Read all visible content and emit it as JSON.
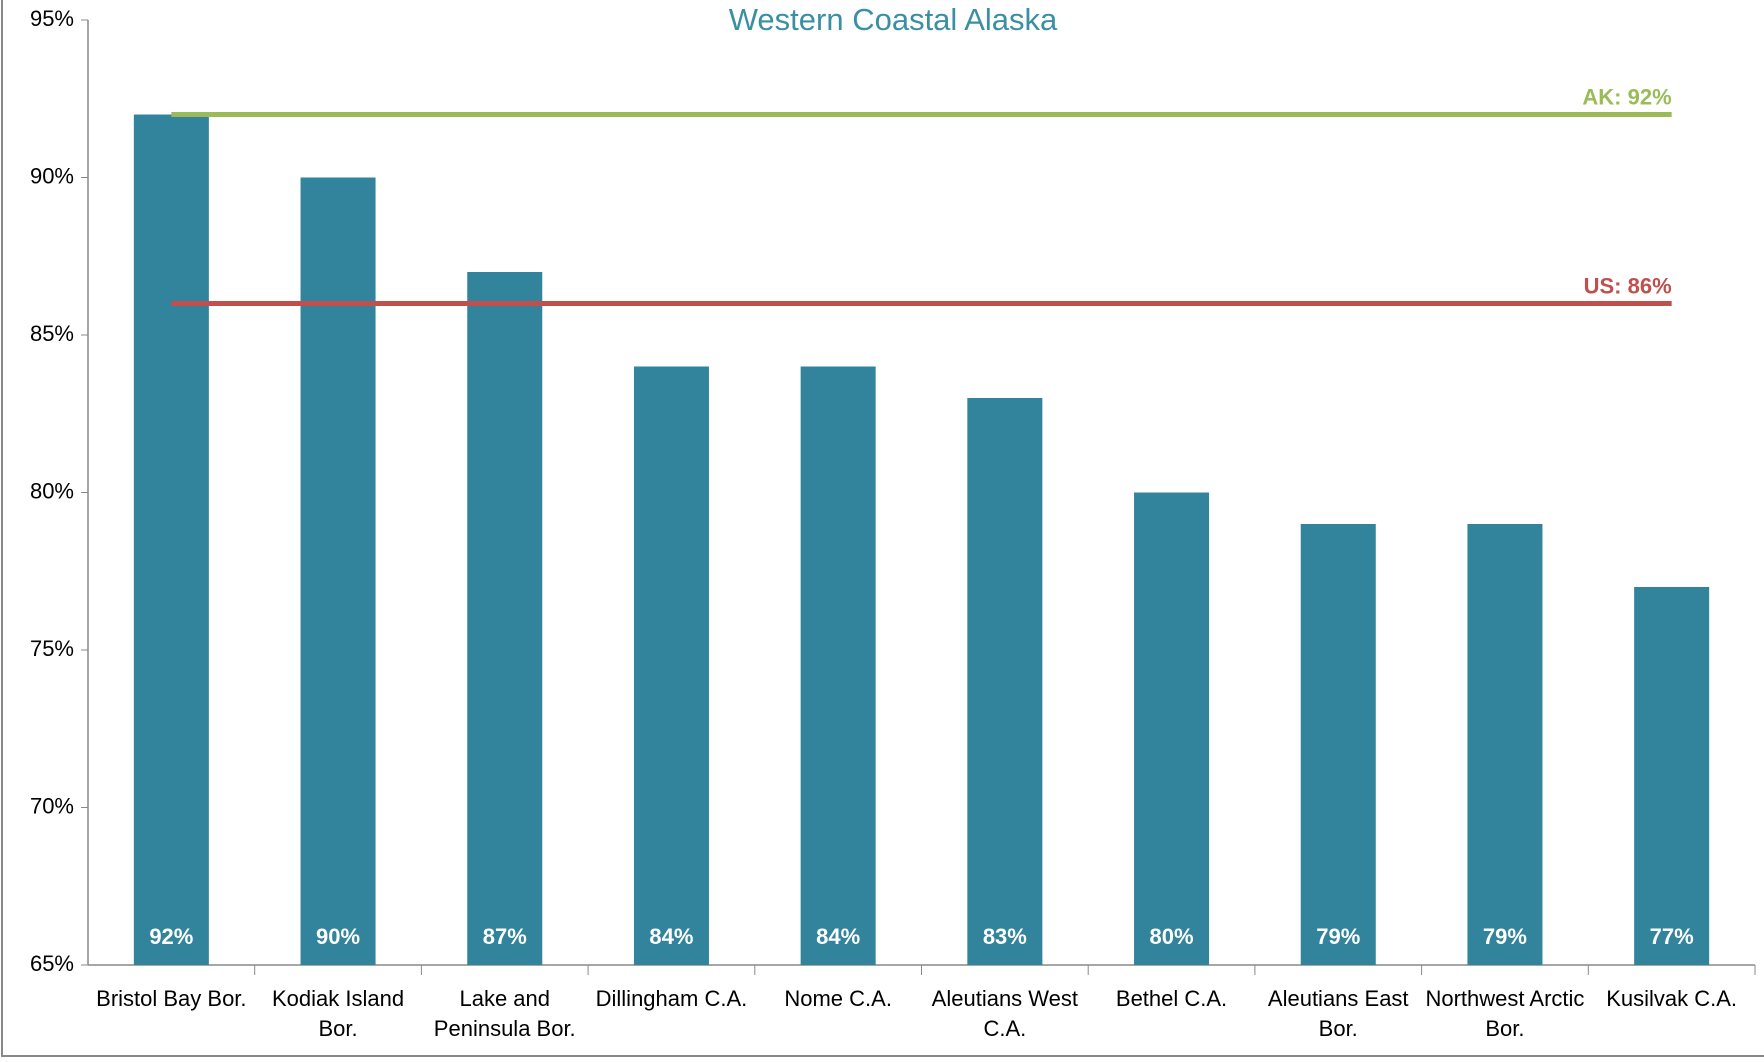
{
  "chart_data": {
    "type": "bar",
    "subtitle": "Western Coastal Alaska",
    "categories": [
      "Bristol Bay Bor.",
      "Kodiak Island Bor.",
      "Lake and Peninsula Bor.",
      "Dillingham C.A.",
      "Nome C.A.",
      "Aleutians West C.A.",
      "Bethel C.A.",
      "Aleutians East Bor.",
      "Northwest Arctic Bor.",
      "Kusilvak C.A."
    ],
    "values": [
      92,
      90,
      87,
      84,
      84,
      83,
      80,
      79,
      79,
      77
    ],
    "value_labels": [
      "92%",
      "90%",
      "87%",
      "84%",
      "84%",
      "83%",
      "80%",
      "79%",
      "79%",
      "77%"
    ],
    "color": "#31849b",
    "ylim": [
      65,
      95
    ],
    "yticks": [
      {
        "value": 65,
        "label": "65%"
      },
      {
        "value": 70,
        "label": "70%"
      },
      {
        "value": 75,
        "label": "75%"
      },
      {
        "value": 80,
        "label": "80%"
      },
      {
        "value": 85,
        "label": "85%"
      },
      {
        "value": 90,
        "label": "90%"
      },
      {
        "value": 95,
        "label": "95%"
      }
    ],
    "grid": false,
    "reference_lines": [
      {
        "label": "AK: 92%",
        "value": 92,
        "color": "#9bbb59"
      },
      {
        "label": "US: 86%",
        "value": 86,
        "color": "#c0504d"
      }
    ]
  }
}
